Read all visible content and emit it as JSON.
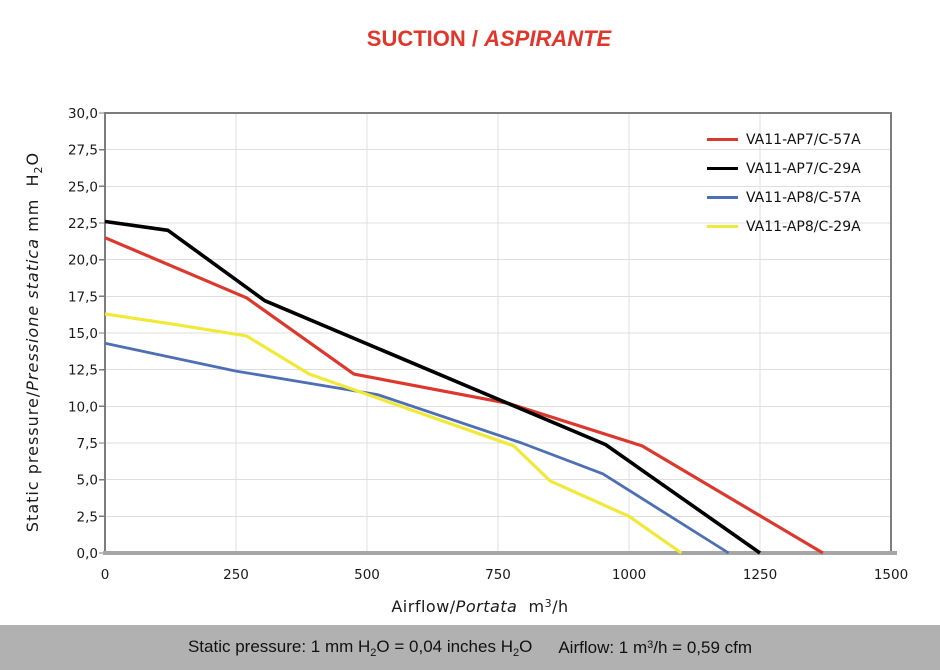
{
  "page": {
    "title": {
      "part1": "SUCTION / ",
      "part2": "ASPIRANTE"
    },
    "footer": {
      "static_pressure_pre": "Static pressure: 1 mm H",
      "sub1": "2",
      "static_pressure_mid": "O = 0,04 inches H",
      "sub2": "2",
      "static_pressure_post": "O",
      "airflow_pre": "Airflow: 1 m",
      "sup": "3",
      "airflow_post": "/h = 0,59 cfm"
    }
  },
  "axes": {
    "y_label": {
      "en": "Static pressure/",
      "it": "Pressione statica",
      "unit_pre": " mm  H",
      "unit_sub": "2",
      "unit_post": "O"
    },
    "x_label": {
      "en": "Airflow/",
      "it": "Portata",
      "unit_pre": "  m",
      "unit_sup": "3",
      "unit_post": "/h"
    }
  },
  "chart_data": {
    "type": "line",
    "title": "SUCTION / ASPIRANTE",
    "xlabel": "Airflow/Portata m³/h",
    "ylabel": "Static pressure/Pressione statica mm H₂O",
    "xlim": [
      0,
      1500
    ],
    "ylim": [
      0,
      30
    ],
    "x_ticks": [
      0,
      250,
      500,
      750,
      1000,
      1250,
      1500
    ],
    "y_tick_labels_top_to_bottom": [
      "30,0",
      "27,5",
      "25,0",
      "22,5",
      "20,0",
      "17,5",
      "15,0",
      "12,5",
      "10,0",
      "7,5",
      "5,0",
      "2,5",
      "0,0"
    ],
    "grid": true,
    "legend_position": "inside-top-right",
    "series": [
      {
        "name": "VA11-AP7/C-57A",
        "color": "#dc392e",
        "stroke_width": 3.2,
        "points": [
          [
            0,
            21.5
          ],
          [
            270,
            17.4
          ],
          [
            475,
            12.2
          ],
          [
            770,
            10.2
          ],
          [
            1025,
            7.3
          ],
          [
            1370,
            0
          ]
        ]
      },
      {
        "name": "VA11-AP7/C-29A",
        "color": "#000000",
        "stroke_width": 3.6,
        "points": [
          [
            0,
            22.6
          ],
          [
            120,
            22.0
          ],
          [
            305,
            17.2
          ],
          [
            955,
            7.4
          ],
          [
            1250,
            0
          ]
        ]
      },
      {
        "name": "VA11-AP8/C-57A",
        "color": "#4e6fb4",
        "stroke_width": 2.8,
        "points": [
          [
            0,
            14.3
          ],
          [
            250,
            12.4
          ],
          [
            520,
            10.8
          ],
          [
            795,
            7.5
          ],
          [
            950,
            5.4
          ],
          [
            1190,
            0
          ]
        ]
      },
      {
        "name": "VA11-AP8/C-29A",
        "color": "#f0e93a",
        "stroke_width": 3.2,
        "points": [
          [
            0,
            16.3
          ],
          [
            130,
            15.6
          ],
          [
            270,
            14.8
          ],
          [
            390,
            12.2
          ],
          [
            780,
            7.3
          ],
          [
            850,
            4.9
          ],
          [
            1000,
            2.5
          ],
          [
            1100,
            0
          ]
        ]
      }
    ]
  },
  "colors": {
    "title_red": "#e2352b",
    "grid": "#dfdfdf",
    "plot_border": "#7d7d7d",
    "axis_line": "#a6a6a6",
    "tick_text": "#1a1a1a",
    "footer_bg": "#b1b1b1",
    "footer_text": "#111111"
  }
}
